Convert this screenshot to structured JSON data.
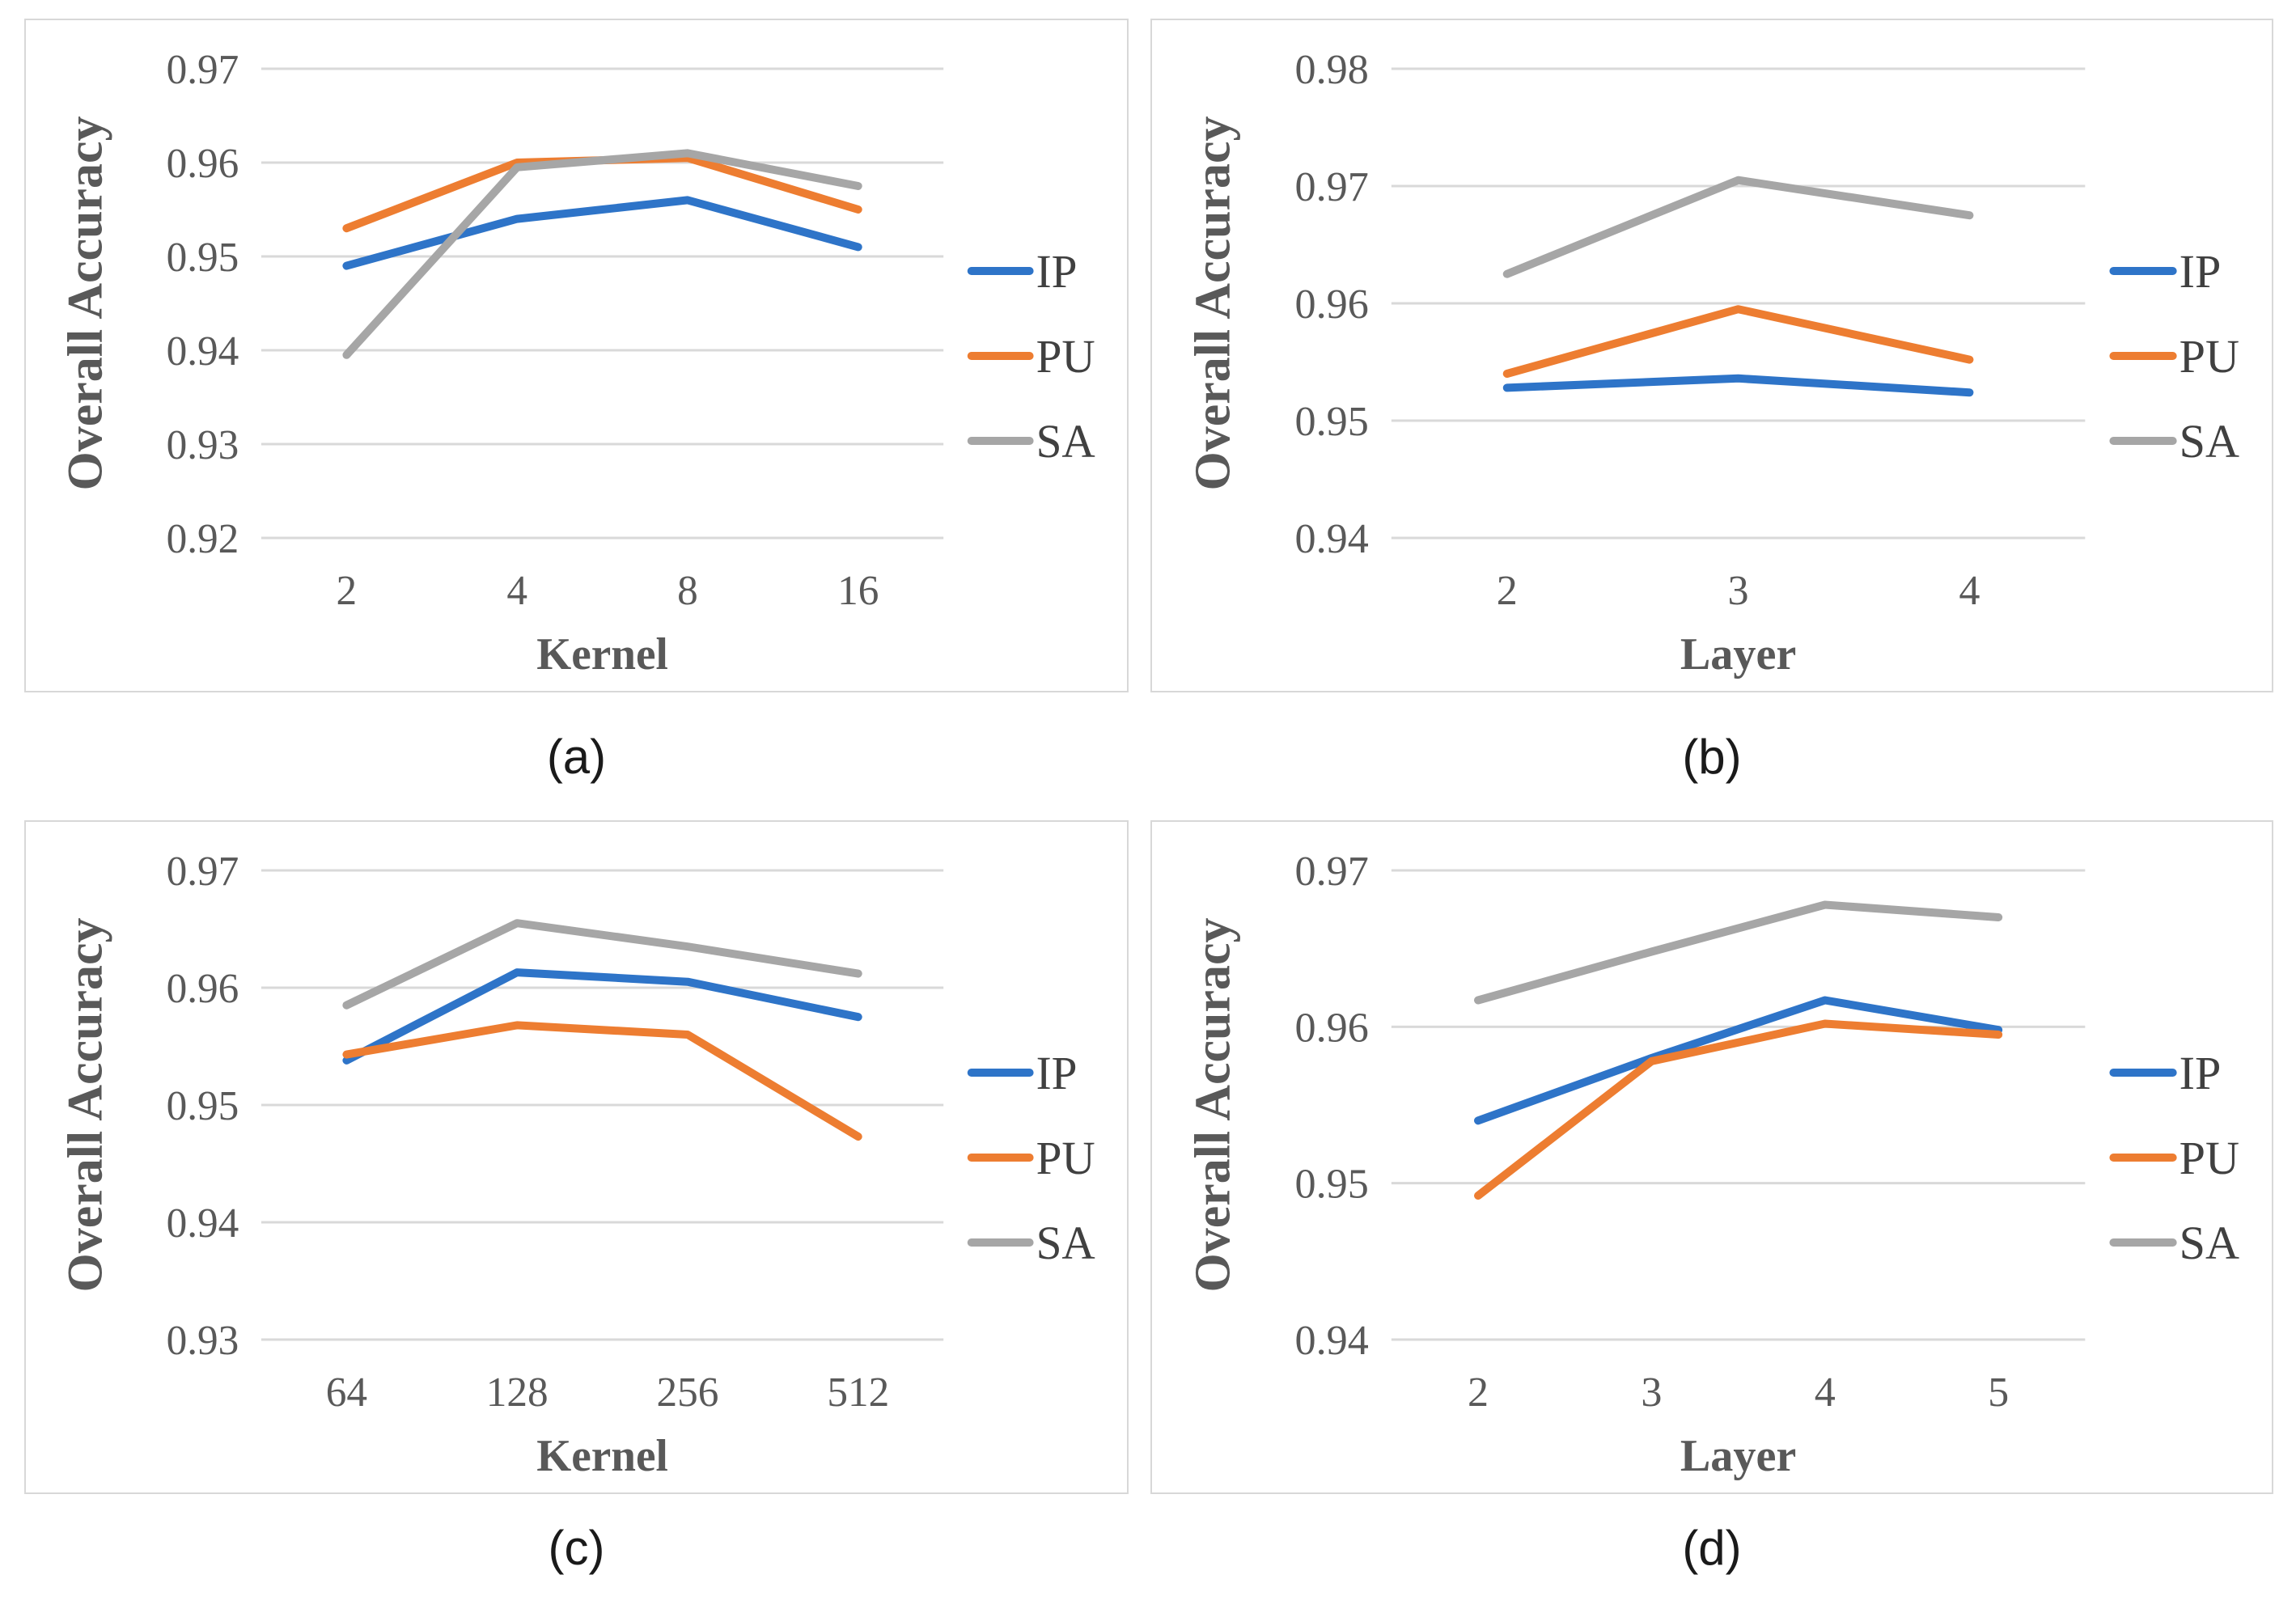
{
  "figure": {
    "description": "Four line charts of overall accuracy versus kernel number and layer number for three datasets"
  },
  "colors": {
    "IP": "#2e74c8",
    "PU": "#ed7d31",
    "SA": "#a6a6a6",
    "grid": "#d9d9d9",
    "axis_text": "#595959",
    "legend_text": "#404040",
    "panel_border": "#d8d8d8"
  },
  "chart_data": [
    {
      "type": "line",
      "caption": "(a)",
      "ylabel": "Overall Accuracy",
      "xlabel": "Kernel",
      "categories": [
        "2",
        "4",
        "8",
        "16"
      ],
      "yticks": [
        0.97,
        0.96,
        0.95,
        0.94,
        0.93,
        0.92
      ],
      "ylim": [
        0.92,
        0.97
      ],
      "grid": true,
      "legend": [
        "IP",
        "PU",
        "SA"
      ],
      "legend_position": "right",
      "series": [
        {
          "name": "IP",
          "values": [
            0.949,
            0.954,
            0.956,
            0.951
          ]
        },
        {
          "name": "PU",
          "values": [
            0.953,
            0.96,
            0.9605,
            0.955
          ]
        },
        {
          "name": "SA",
          "values": [
            0.9395,
            0.9595,
            0.961,
            0.9575
          ]
        }
      ]
    },
    {
      "type": "line",
      "caption": "(b)",
      "ylabel": "Overall Accuracy",
      "xlabel": "Layer",
      "categories": [
        "2",
        "3",
        "4"
      ],
      "yticks": [
        0.98,
        0.97,
        0.96,
        0.95,
        0.94
      ],
      "ylim": [
        0.94,
        0.98
      ],
      "grid": true,
      "legend": [
        "IP",
        "PU",
        "SA"
      ],
      "legend_position": "right",
      "series": [
        {
          "name": "IP",
          "values": [
            0.9528,
            0.9536,
            0.9524
          ]
        },
        {
          "name": "PU",
          "values": [
            0.954,
            0.9595,
            0.9552
          ]
        },
        {
          "name": "SA",
          "values": [
            0.9625,
            0.9705,
            0.9675
          ]
        }
      ]
    },
    {
      "type": "line",
      "caption": "(c)",
      "ylabel": "Overall Accuracy",
      "xlabel": "Kernel",
      "categories": [
        "64",
        "128",
        "256",
        "512"
      ],
      "yticks": [
        0.97,
        0.96,
        0.95,
        0.94,
        0.93
      ],
      "ylim": [
        0.93,
        0.97
      ],
      "grid": true,
      "legend": [
        "IP",
        "PU",
        "SA"
      ],
      "legend_position": "right",
      "series": [
        {
          "name": "IP",
          "values": [
            0.9538,
            0.9613,
            0.9605,
            0.9575
          ]
        },
        {
          "name": "PU",
          "values": [
            0.9543,
            0.9568,
            0.956,
            0.9473
          ]
        },
        {
          "name": "SA",
          "values": [
            0.9585,
            0.9655,
            0.9635,
            0.9612
          ]
        }
      ]
    },
    {
      "type": "line",
      "caption": "(d)",
      "ylabel": "Overall Accuracy",
      "xlabel": "Layer",
      "categories": [
        "2",
        "3",
        "4",
        "5"
      ],
      "yticks": [
        0.97,
        0.96,
        0.95,
        0.94
      ],
      "ylim": [
        0.94,
        0.97
      ],
      "grid": true,
      "legend": [
        "IP",
        "PU",
        "SA"
      ],
      "legend_position": "right",
      "series": [
        {
          "name": "IP",
          "values": [
            0.954,
            0.958,
            0.9617,
            0.9598
          ]
        },
        {
          "name": "PU",
          "values": [
            0.9492,
            0.9578,
            0.9602,
            0.9595
          ]
        },
        {
          "name": "SA",
          "values": [
            0.9617,
            0.9648,
            0.9678,
            0.967
          ]
        }
      ]
    }
  ]
}
